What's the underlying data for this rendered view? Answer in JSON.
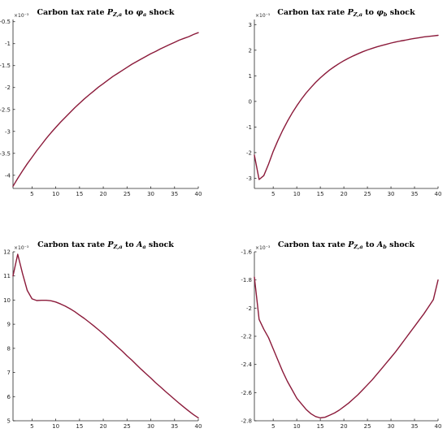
{
  "colors": {
    "line": "#8b1a3a",
    "axis": "#262626"
  },
  "chart_data": [
    {
      "type": "line",
      "title": "Carbon tax rate P_{Z,a} to φ_a shock",
      "title_parts": [
        "Carbon tax rate ",
        "P",
        "Z,a",
        " to ",
        "φ",
        "a",
        " shock"
      ],
      "exponent_label": "×10⁻³",
      "xlim": [
        1,
        40
      ],
      "ylim": [
        -4.3,
        -0.45
      ],
      "xticks": [
        5,
        10,
        15,
        20,
        25,
        30,
        35,
        40
      ],
      "xtick_labels": [
        "5",
        "10",
        "15",
        "20",
        "25",
        "30",
        "35",
        "40"
      ],
      "yticks": [
        -4,
        -3.5,
        -3,
        -2.5,
        -2,
        -1.5,
        -1,
        -0.5
      ],
      "ytick_labels": [
        "-4",
        "-3.5",
        "-3",
        "-2.5",
        "-2",
        "-1.5",
        "-1",
        "-0.5"
      ],
      "grid": false,
      "series": [
        {
          "x": [
            1,
            2,
            3,
            4,
            5,
            6,
            7,
            8,
            9,
            10,
            11,
            12,
            13,
            14,
            15,
            16,
            17,
            18,
            19,
            20,
            21,
            22,
            23,
            24,
            25,
            26,
            27,
            28,
            29,
            30,
            31,
            32,
            33,
            34,
            35,
            36,
            37,
            38,
            39,
            40
          ],
          "values": [
            -4.25,
            -4.07,
            -3.9,
            -3.74,
            -3.59,
            -3.44,
            -3.3,
            -3.16,
            -3.03,
            -2.91,
            -2.79,
            -2.68,
            -2.57,
            -2.46,
            -2.36,
            -2.26,
            -2.17,
            -2.08,
            -1.99,
            -1.91,
            -1.83,
            -1.75,
            -1.68,
            -1.61,
            -1.54,
            -1.47,
            -1.41,
            -1.35,
            -1.29,
            -1.23,
            -1.18,
            -1.12,
            -1.07,
            -1.02,
            -0.97,
            -0.92,
            -0.88,
            -0.84,
            -0.79,
            -0.75
          ]
        }
      ]
    },
    {
      "type": "line",
      "title": "Carbon tax rate P_{Z,a} to φ_b shock",
      "title_parts": [
        "Carbon tax rate ",
        "P",
        "Z,a",
        " to ",
        "φ",
        "b",
        " shock"
      ],
      "exponent_label": "×10⁻⁵",
      "xlim": [
        1,
        40
      ],
      "ylim": [
        -3.4,
        3.2
      ],
      "xticks": [
        5,
        10,
        15,
        20,
        25,
        30,
        35,
        40
      ],
      "xtick_labels": [
        "5",
        "10",
        "15",
        "20",
        "25",
        "30",
        "35",
        "40"
      ],
      "yticks": [
        -3,
        -2,
        -1,
        0,
        1,
        2,
        3
      ],
      "ytick_labels": [
        "-3",
        "-2",
        "-1",
        "0",
        "1",
        "2",
        "3"
      ],
      "grid": false,
      "series": [
        {
          "x": [
            1,
            2,
            3,
            4,
            5,
            6,
            7,
            8,
            9,
            10,
            11,
            12,
            13,
            14,
            15,
            16,
            17,
            18,
            19,
            20,
            21,
            22,
            23,
            24,
            25,
            26,
            27,
            28,
            29,
            30,
            31,
            32,
            33,
            34,
            35,
            36,
            37,
            38,
            39,
            40
          ],
          "values": [
            -2.1,
            -3.05,
            -2.9,
            -2.45,
            -1.95,
            -1.52,
            -1.13,
            -0.78,
            -0.46,
            -0.17,
            0.09,
            0.33,
            0.54,
            0.74,
            0.92,
            1.08,
            1.23,
            1.36,
            1.48,
            1.59,
            1.69,
            1.78,
            1.86,
            1.94,
            2.01,
            2.07,
            2.13,
            2.18,
            2.23,
            2.28,
            2.32,
            2.36,
            2.39,
            2.43,
            2.46,
            2.49,
            2.52,
            2.54,
            2.56,
            2.58
          ]
        }
      ]
    },
    {
      "type": "line",
      "title": "Carbon tax rate P_{Z,a} to A_a shock",
      "title_parts": [
        "Carbon tax rate ",
        "P",
        "Z,a",
        " to ",
        "A",
        "a",
        " shock"
      ],
      "exponent_label": "×10⁻³",
      "xlim": [
        1,
        40
      ],
      "ylim": [
        5,
        12
      ],
      "xticks": [
        5,
        10,
        15,
        20,
        25,
        30,
        35,
        40
      ],
      "xtick_labels": [
        "5",
        "10",
        "15",
        "20",
        "25",
        "30",
        "35",
        "40"
      ],
      "yticks": [
        5,
        6,
        7,
        8,
        9,
        10,
        11,
        12
      ],
      "ytick_labels": [
        "5",
        "6",
        "7",
        "8",
        "9",
        "10",
        "11",
        "12"
      ],
      "grid": false,
      "series": [
        {
          "x": [
            1,
            2,
            3,
            4,
            5,
            6,
            7,
            8,
            9,
            10,
            11,
            12,
            13,
            14,
            15,
            16,
            17,
            18,
            19,
            20,
            21,
            22,
            23,
            24,
            25,
            26,
            27,
            28,
            29,
            30,
            31,
            32,
            33,
            34,
            35,
            36,
            37,
            38,
            39,
            40
          ],
          "values": [
            11.0,
            11.9,
            11.1,
            10.4,
            10.05,
            9.98,
            9.99,
            9.99,
            9.97,
            9.92,
            9.84,
            9.75,
            9.64,
            9.52,
            9.38,
            9.24,
            9.09,
            8.93,
            8.77,
            8.6,
            8.42,
            8.24,
            8.06,
            7.88,
            7.69,
            7.51,
            7.32,
            7.13,
            6.95,
            6.77,
            6.58,
            6.41,
            6.23,
            6.06,
            5.89,
            5.72,
            5.56,
            5.4,
            5.25,
            5.12
          ]
        }
      ]
    },
    {
      "type": "line",
      "title": "Carbon tax rate P_{Z,a} to A_b shock",
      "title_parts": [
        "Carbon tax rate ",
        "P",
        "Z,a",
        " to ",
        "A",
        "b",
        " shock"
      ],
      "exponent_label": "×10⁻³",
      "xlim": [
        1,
        40
      ],
      "ylim": [
        -2.8,
        -1.6
      ],
      "xticks": [
        5,
        10,
        15,
        20,
        25,
        30,
        35,
        40
      ],
      "xtick_labels": [
        "5",
        "10",
        "15",
        "20",
        "25",
        "30",
        "35",
        "40"
      ],
      "yticks": [
        -2.8,
        -2.6,
        -2.4,
        -2.2,
        -2.0,
        -1.8,
        -1.6
      ],
      "ytick_labels": [
        "-2.8",
        "-2.6",
        "-2.4",
        "-2.2",
        "-2",
        "-1.8",
        "-1.6"
      ],
      "grid": false,
      "series": [
        {
          "x": [
            1,
            2,
            3,
            4,
            5,
            6,
            7,
            8,
            9,
            10,
            11,
            12,
            13,
            14,
            15,
            16,
            17,
            18,
            19,
            20,
            21,
            22,
            23,
            24,
            25,
            26,
            27,
            28,
            29,
            30,
            31,
            32,
            33,
            34,
            35,
            36,
            37,
            38,
            39,
            40
          ],
          "values": [
            -1.78,
            -2.08,
            -2.15,
            -2.21,
            -2.29,
            -2.37,
            -2.45,
            -2.52,
            -2.58,
            -2.64,
            -2.68,
            -2.72,
            -2.75,
            -2.77,
            -2.78,
            -2.775,
            -2.76,
            -2.745,
            -2.725,
            -2.7,
            -2.675,
            -2.645,
            -2.615,
            -2.58,
            -2.545,
            -2.51,
            -2.47,
            -2.43,
            -2.39,
            -2.35,
            -2.31,
            -2.265,
            -2.22,
            -2.175,
            -2.13,
            -2.085,
            -2.04,
            -1.99,
            -1.94,
            -1.8
          ]
        }
      ]
    }
  ]
}
